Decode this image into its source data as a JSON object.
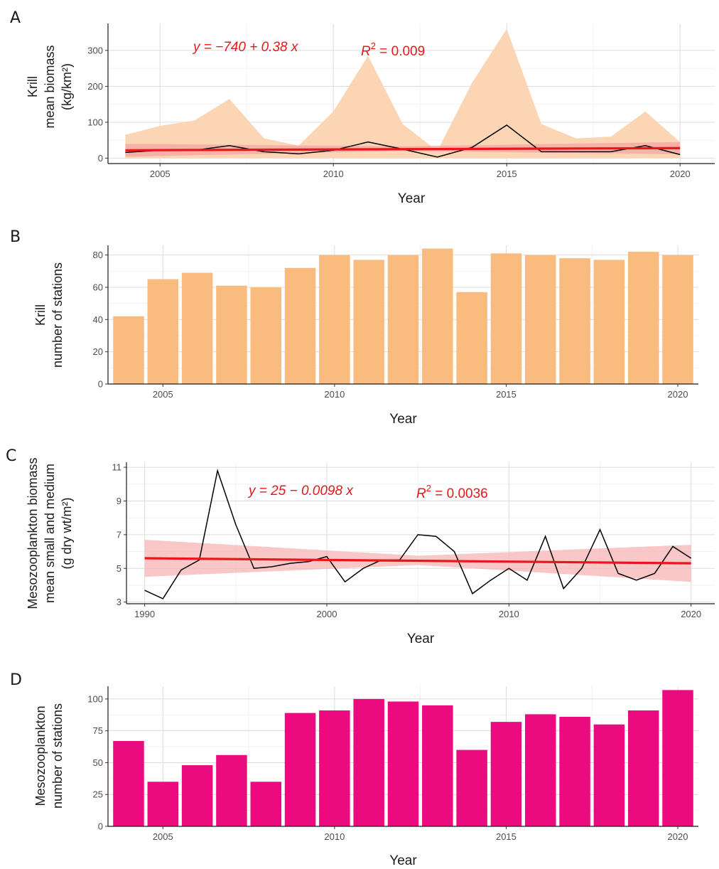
{
  "panels": [
    {
      "letter": "A",
      "xlabel": "Year",
      "ylabel_lines": [
        "Krill",
        "mean biomass",
        "(kg/km²)"
      ],
      "annotations": [
        {
          "kind": "equation",
          "text": "y = −740 + 0.38 x"
        },
        {
          "kind": "r2",
          "base": "R",
          "sup": "2",
          "rest": " = 0.009"
        }
      ]
    },
    {
      "letter": "B",
      "xlabel": "Year",
      "ylabel_lines": [
        "Krill",
        "number of stations"
      ]
    },
    {
      "letter": "C",
      "xlabel": "Year",
      "ylabel_lines": [
        "Mesozooplankton biomass",
        "mean small and medium",
        "(g dry wt/m²)"
      ],
      "annotations": [
        {
          "kind": "equation",
          "text": "y = 25 − 0.0098 x"
        },
        {
          "kind": "r2",
          "base": "R",
          "sup": "2",
          "rest": " = 0.0036"
        }
      ]
    },
    {
      "letter": "D",
      "xlabel": "Year",
      "ylabel_lines": [
        "Mesozooplankton",
        "number of stations"
      ]
    }
  ],
  "chart_data": [
    {
      "type": "line",
      "xlim": [
        2003.5,
        2021
      ],
      "ylim": [
        -15,
        375
      ],
      "x_ticks": [
        2005,
        2010,
        2015,
        2020
      ],
      "y_ticks": [
        0,
        100,
        200,
        300
      ],
      "colors": {
        "line": "#000000",
        "band": "#fbd5b4",
        "fit": "#e8171b",
        "fit_band": "#f4a5a5"
      },
      "x": [
        2004,
        2005,
        2006,
        2007,
        2008,
        2009,
        2010,
        2011,
        2012,
        2013,
        2014,
        2015,
        2016,
        2017,
        2018,
        2019,
        2020
      ],
      "mean": [
        16,
        22,
        22,
        35,
        18,
        12,
        22,
        45,
        25,
        3,
        30,
        92,
        18,
        18,
        18,
        35,
        10
      ],
      "upper": [
        65,
        90,
        105,
        165,
        55,
        35,
        130,
        285,
        95,
        20,
        210,
        360,
        95,
        55,
        60,
        130,
        45
      ],
      "lower": [
        0,
        0,
        0,
        0,
        0,
        0,
        0,
        0,
        0,
        0,
        0,
        0,
        0,
        0,
        0,
        0,
        0
      ],
      "fit": {
        "x": [
          2004,
          2020
        ],
        "y": [
          22,
          28
        ]
      },
      "fit_band": {
        "x": [
          2004,
          2012,
          2020
        ],
        "upper": [
          40,
          33,
          45
        ],
        "lower": [
          4,
          20,
          11
        ]
      }
    },
    {
      "type": "bar",
      "xlim": [
        2003.4,
        2020.6
      ],
      "ylim": [
        0,
        86
      ],
      "x_ticks": [
        2005,
        2010,
        2015,
        2020
      ],
      "y_ticks": [
        0,
        20,
        40,
        60,
        80
      ],
      "colors": {
        "bar": "#f9bb7e"
      },
      "categories": [
        2004,
        2005,
        2006,
        2007,
        2008,
        2009,
        2010,
        2011,
        2012,
        2013,
        2014,
        2015,
        2016,
        2017,
        2018,
        2019,
        2020
      ],
      "values": [
        42,
        65,
        69,
        61,
        60,
        72,
        80,
        77,
        80,
        84,
        57,
        81,
        80,
        78,
        77,
        82,
        80
      ]
    },
    {
      "type": "line",
      "xlim": [
        1989,
        2021.3
      ],
      "ylim": [
        2.9,
        11.3
      ],
      "x_ticks": [
        1990,
        2000,
        2010,
        2020
      ],
      "y_ticks": [
        3,
        5,
        7,
        9,
        11
      ],
      "colors": {
        "line": "#000000",
        "fit": "#e8171b",
        "fit_band": "#f7b4b4"
      },
      "x": [
        1990,
        1991,
        1992,
        1993,
        1994,
        1995,
        1996,
        1997,
        1998,
        1999,
        2000,
        2001,
        2002,
        2003,
        2004,
        2005,
        2006,
        2007,
        2008,
        2009,
        2010,
        2011,
        2012,
        2013,
        2014,
        2015,
        2016,
        2017,
        2018,
        2019,
        2020
      ],
      "y": [
        3.7,
        3.2,
        4.9,
        5.5,
        10.8,
        7.6,
        5.0,
        5.1,
        5.3,
        5.4,
        5.7,
        4.2,
        5.0,
        5.5,
        5.5,
        7.0,
        6.9,
        6.0,
        3.5,
        4.3,
        5.0,
        4.3,
        6.9,
        3.8,
        5.0,
        7.3,
        4.7,
        4.3,
        4.7,
        6.3,
        5.6
      ],
      "fit": {
        "x": [
          1990,
          2020
        ],
        "y": [
          5.6,
          5.3
        ]
      },
      "fit_band": {
        "x": [
          1990,
          2005,
          2020
        ],
        "upper": [
          6.7,
          5.75,
          6.4
        ],
        "lower": [
          4.5,
          5.2,
          4.2
        ]
      }
    },
    {
      "type": "bar",
      "xlim": [
        2003.4,
        2020.6
      ],
      "ylim": [
        0,
        110
      ],
      "x_ticks": [
        2005,
        2010,
        2015,
        2020
      ],
      "y_ticks": [
        0,
        25,
        50,
        75,
        100
      ],
      "colors": {
        "bar": "#ec0a7f"
      },
      "categories": [
        2004,
        2005,
        2006,
        2007,
        2008,
        2009,
        2010,
        2011,
        2012,
        2013,
        2014,
        2015,
        2016,
        2017,
        2018,
        2019,
        2020
      ],
      "values": [
        67,
        35,
        48,
        56,
        35,
        89,
        91,
        100,
        98,
        95,
        60,
        82,
        88,
        86,
        80,
        91,
        107
      ]
    }
  ]
}
